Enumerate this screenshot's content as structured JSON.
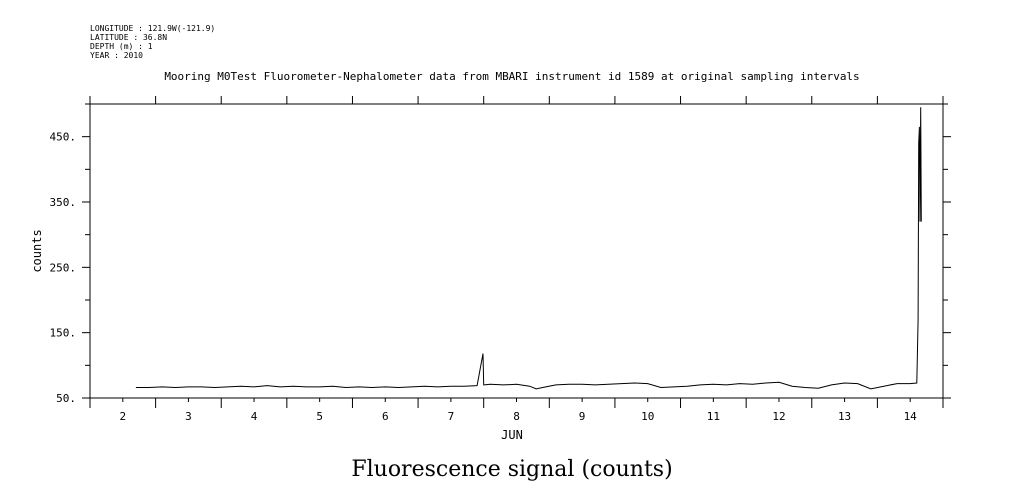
{
  "header": {
    "longitude": "LONGITUDE : 121.9W(-121.9)",
    "latitude": "LATITUDE : 36.8N",
    "depth": "DEPTH (m) : 1",
    "year": "YEAR : 2010"
  },
  "caption": "Fluorescence signal (counts)",
  "chart_data": {
    "type": "line",
    "title": "Mooring M0Test Fluorometer-Nephalometer data from MBARI instrument id 1589 at original sampling intervals",
    "xlabel": "JUN",
    "ylabel": "counts",
    "xlim": [
      1.5,
      14.5
    ],
    "ylim": [
      50,
      500
    ],
    "xticks": [
      2,
      3,
      4,
      5,
      6,
      7,
      8,
      9,
      10,
      11,
      12,
      13,
      14
    ],
    "xtick_labels": [
      "2",
      "3",
      "4",
      "5",
      "6",
      "7",
      "8",
      "9",
      "10",
      "11",
      "12",
      "13",
      "14"
    ],
    "yticks": [
      50,
      150,
      250,
      350,
      450
    ],
    "ytick_labels": [
      "50.",
      "150.",
      "250.",
      "350.",
      "450."
    ],
    "grid": false,
    "series": [
      {
        "x": [
          2.2,
          2.4,
          2.6,
          2.8,
          3.0,
          3.2,
          3.4,
          3.6,
          3.8,
          4.0,
          4.2,
          4.4,
          4.6,
          4.8,
          5.0,
          5.2,
          5.4,
          5.6,
          5.8,
          6.0,
          6.2,
          6.4,
          6.6,
          6.8,
          7.0,
          7.2,
          7.4,
          7.49,
          7.5,
          7.51,
          7.6,
          7.8,
          8.0,
          8.2,
          8.3,
          8.4,
          8.6,
          8.8,
          9.0,
          9.2,
          9.4,
          9.6,
          9.8,
          10.0,
          10.2,
          10.4,
          10.6,
          10.8,
          11.0,
          11.2,
          11.4,
          11.6,
          11.8,
          12.0,
          12.2,
          12.4,
          12.6,
          12.8,
          13.0,
          13.2,
          13.4,
          13.6,
          13.8,
          14.0,
          14.1,
          14.12,
          14.13,
          14.14,
          14.15,
          14.16,
          14.17
        ],
        "y": [
          66,
          66,
          67,
          66,
          67,
          67,
          66,
          67,
          68,
          67,
          69,
          67,
          68,
          67,
          67,
          68,
          66,
          67,
          66,
          67,
          66,
          67,
          68,
          67,
          68,
          68,
          69,
          118,
          70,
          70,
          71,
          70,
          71,
          68,
          64,
          66,
          70,
          71,
          71,
          70,
          71,
          72,
          73,
          72,
          66,
          67,
          68,
          70,
          71,
          70,
          72,
          71,
          73,
          74,
          68,
          66,
          65,
          70,
          73,
          72,
          64,
          68,
          72,
          72,
          73,
          170,
          440,
          465,
          320,
          495,
          320
        ]
      }
    ]
  }
}
